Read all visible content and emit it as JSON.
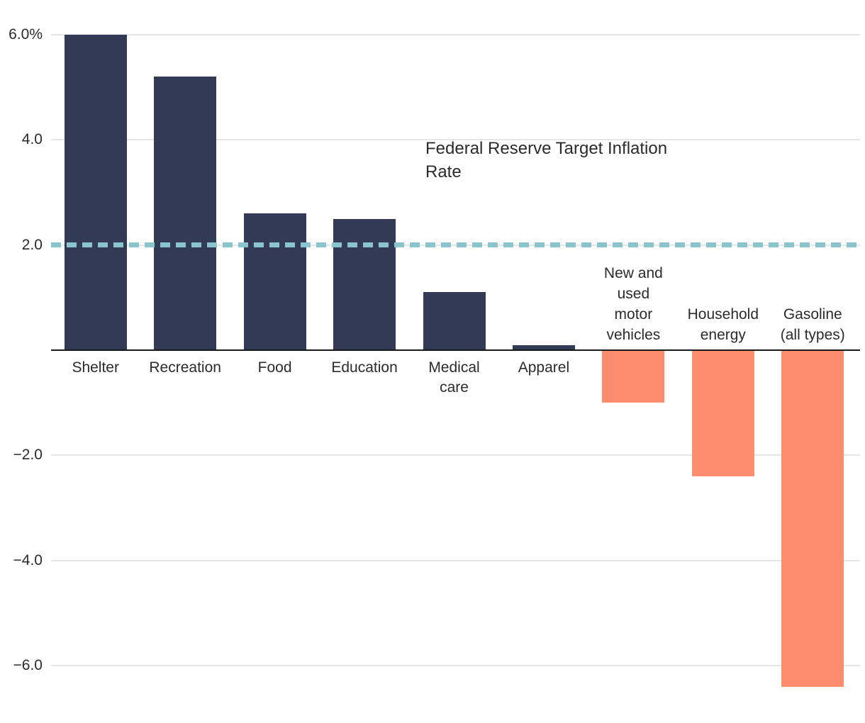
{
  "chart_data": {
    "type": "bar",
    "title": "",
    "xlabel": "",
    "ylabel": "",
    "unit": "percent",
    "categories": [
      {
        "label": "Shelter",
        "lines": [
          "Shelter"
        ],
        "value": 6.0
      },
      {
        "label": "Recreation",
        "lines": [
          "Recreation"
        ],
        "value": 5.2
      },
      {
        "label": "Food",
        "lines": [
          "Food"
        ],
        "value": 2.6
      },
      {
        "label": "Education",
        "lines": [
          "Education"
        ],
        "value": 2.5
      },
      {
        "label": "Medical care",
        "lines": [
          "Medical",
          "care"
        ],
        "value": 1.1
      },
      {
        "label": "Apparel",
        "lines": [
          "Apparel"
        ],
        "value": 0.1
      },
      {
        "label": "New and used motor vehicles",
        "lines": [
          "New and",
          "used",
          "motor",
          "vehicles"
        ],
        "value": -1.0
      },
      {
        "label": "Household energy",
        "lines": [
          "Household",
          "energy"
        ],
        "value": -2.4
      },
      {
        "label": "Gasoline (all types)",
        "lines": [
          "Gasoline",
          "(all types)"
        ],
        "value": -6.4
      }
    ],
    "y_ticks": [
      {
        "value": 6,
        "label": "6.0%"
      },
      {
        "value": 4,
        "label": "4.0"
      },
      {
        "value": 2,
        "label": "2.0"
      },
      {
        "value": -2,
        "label": "−2.0"
      },
      {
        "value": -4,
        "label": "−4.0"
      },
      {
        "value": -6,
        "label": "−6.0"
      }
    ],
    "ylim": [
      -7.1,
      6.7
    ],
    "grid": true,
    "legend": false,
    "reference_line": {
      "value": 2.0,
      "style": "dashed",
      "annotation": "Federal Reserve Target Inflation\nRate"
    },
    "colors": {
      "positive_bar": "#333a56",
      "negative_bar": "#fb8d6e",
      "reference_line": "#8ac4cc",
      "gridline": "#e6e6e6",
      "axis_line": "#1a1a1a",
      "text": "#2b2b2b"
    }
  }
}
